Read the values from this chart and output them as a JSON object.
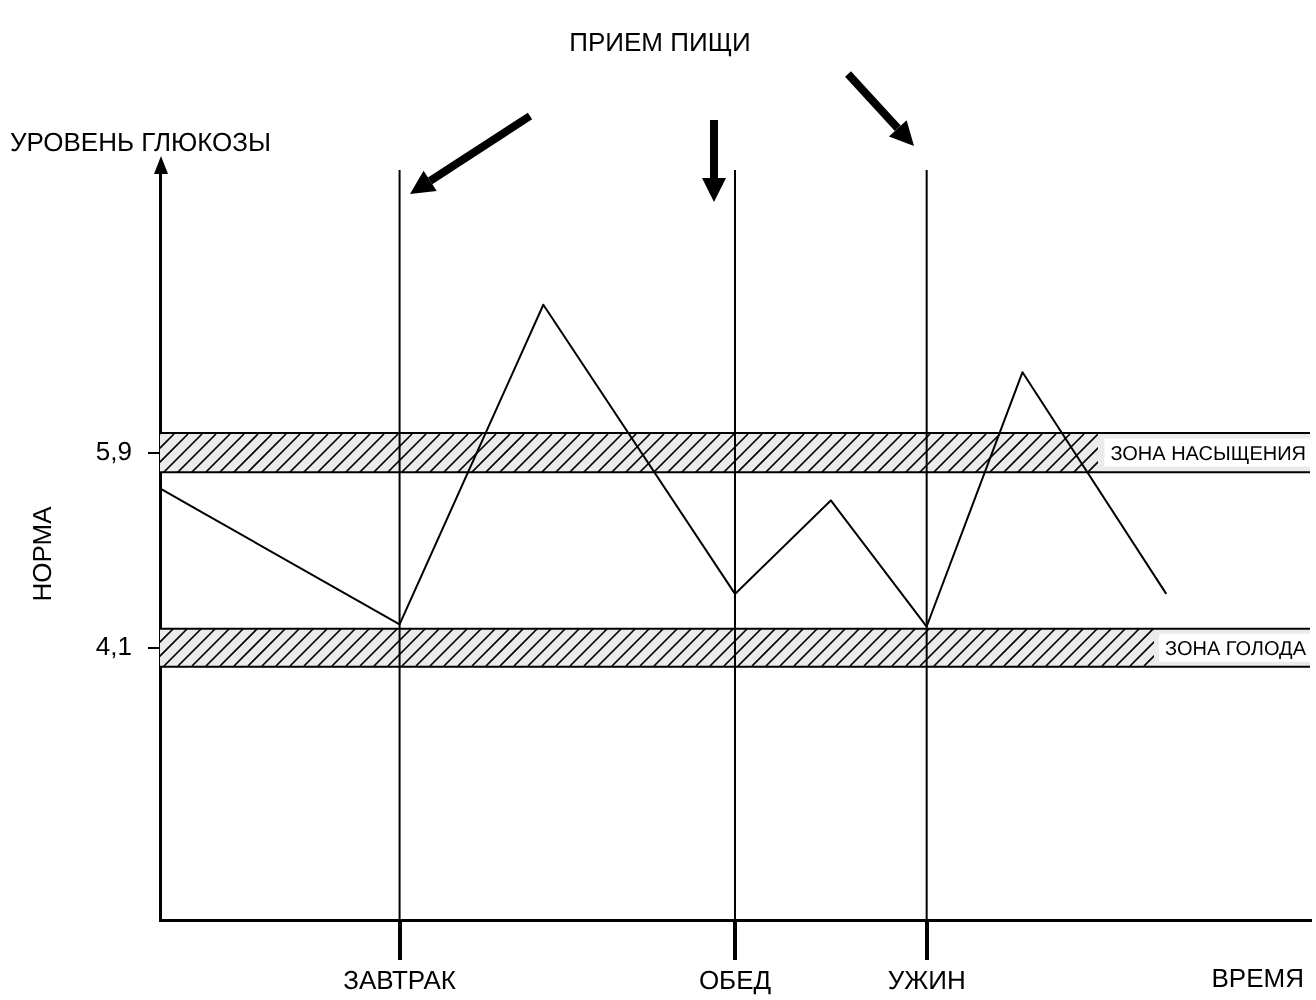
{
  "chart_data": {
    "type": "line",
    "title": "ПРИЕМ ПИЩИ",
    "xlabel": "ВРЕМЯ",
    "ylabel": "УРОВЕНЬ ГЛЮКОЗЫ",
    "annotations": [
      "НОРМА"
    ],
    "categories": [
      null,
      null,
      null,
      null,
      null,
      "ЗАВТРАК",
      null,
      null,
      null,
      null,
      null,
      null,
      "ОБЕД",
      null,
      null,
      null,
      "УЖИН",
      null,
      null,
      null,
      null,
      null,
      null,
      null,
      null
    ],
    "series": [
      {
        "color": "#000000",
        "values": [
          5.57,
          null,
          null,
          null,
          null,
          4.32,
          null,
          null,
          7.26,
          null,
          null,
          null,
          4.6,
          null,
          5.46,
          null,
          4.3,
          null,
          6.64,
          null,
          null,
          4.6,
          null,
          null,
          null
        ]
      }
    ],
    "ylim": [
      1.6,
      8.5
    ],
    "yticks": [
      {
        "value": 4.1,
        "label": "4,1"
      },
      {
        "value": 5.9,
        "label": "5,9"
      }
    ],
    "ref_lines": [
      {
        "axis": "x",
        "value": "ЗАВТРАК"
      },
      {
        "axis": "x",
        "value": "ОБЕД"
      },
      {
        "axis": "x",
        "value": "УЖИН"
      }
    ],
    "bands": [
      {
        "axis": "y",
        "from": 5.72,
        "to": 6.08,
        "label": "ЗОНА НАСЫЩЕНИЯ",
        "color": "#ebebeb"
      },
      {
        "axis": "y",
        "from": 3.93,
        "to": 4.28,
        "label": "ЗОНА ГОЛОДА",
        "color": "#ebebeb"
      }
    ],
    "grid": false,
    "legend": false,
    "marker": "none",
    "line_style": "solid"
  }
}
